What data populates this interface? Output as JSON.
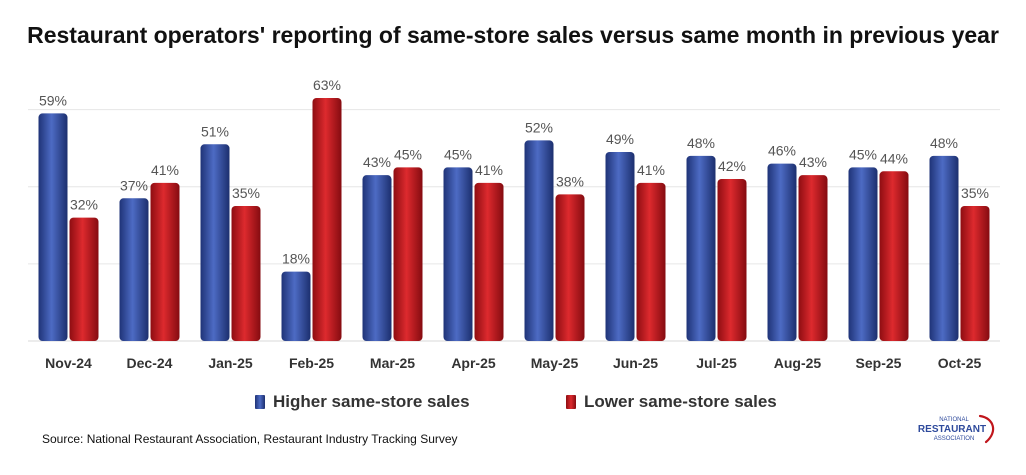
{
  "chart_data": {
    "type": "bar",
    "title": "Restaurant operators' reporting of same-store sales versus same month in previous year",
    "categories": [
      "Nov-24",
      "Dec-24",
      "Jan-25",
      "Feb-25",
      "Mar-25",
      "Apr-25",
      "May-25",
      "Jun-25",
      "Jul-25",
      "Aug-25",
      "Sep-25",
      "Oct-25"
    ],
    "series": [
      {
        "name": "Higher same-store sales",
        "color": "#2e4a9c",
        "values": [
          59,
          37,
          51,
          18,
          43,
          45,
          52,
          49,
          48,
          46,
          45,
          48
        ],
        "labels": [
          "59%",
          "37%",
          "51%",
          "18%",
          "43%",
          "45%",
          "52%",
          "49%",
          "48%",
          "46%",
          "45%",
          "48%"
        ]
      },
      {
        "name": "Lower same-store sales",
        "color": "#c0161c",
        "values": [
          32,
          41,
          35,
          63,
          45,
          41,
          38,
          41,
          42,
          43,
          44,
          35
        ],
        "labels": [
          "32%",
          "41%",
          "35%",
          "63%",
          "45%",
          "41%",
          "38%",
          "41%",
          "42%",
          "43%",
          "44%",
          "35%"
        ]
      }
    ],
    "ylim": [
      0,
      70
    ],
    "grid": true,
    "legend_position": "bottom",
    "source": "Source: National Restaurant Association, Restaurant Industry Tracking Survey"
  },
  "logo": {
    "line1": "NATIONAL",
    "line2": "RESTAURANT",
    "line3": "ASSOCIATION"
  }
}
